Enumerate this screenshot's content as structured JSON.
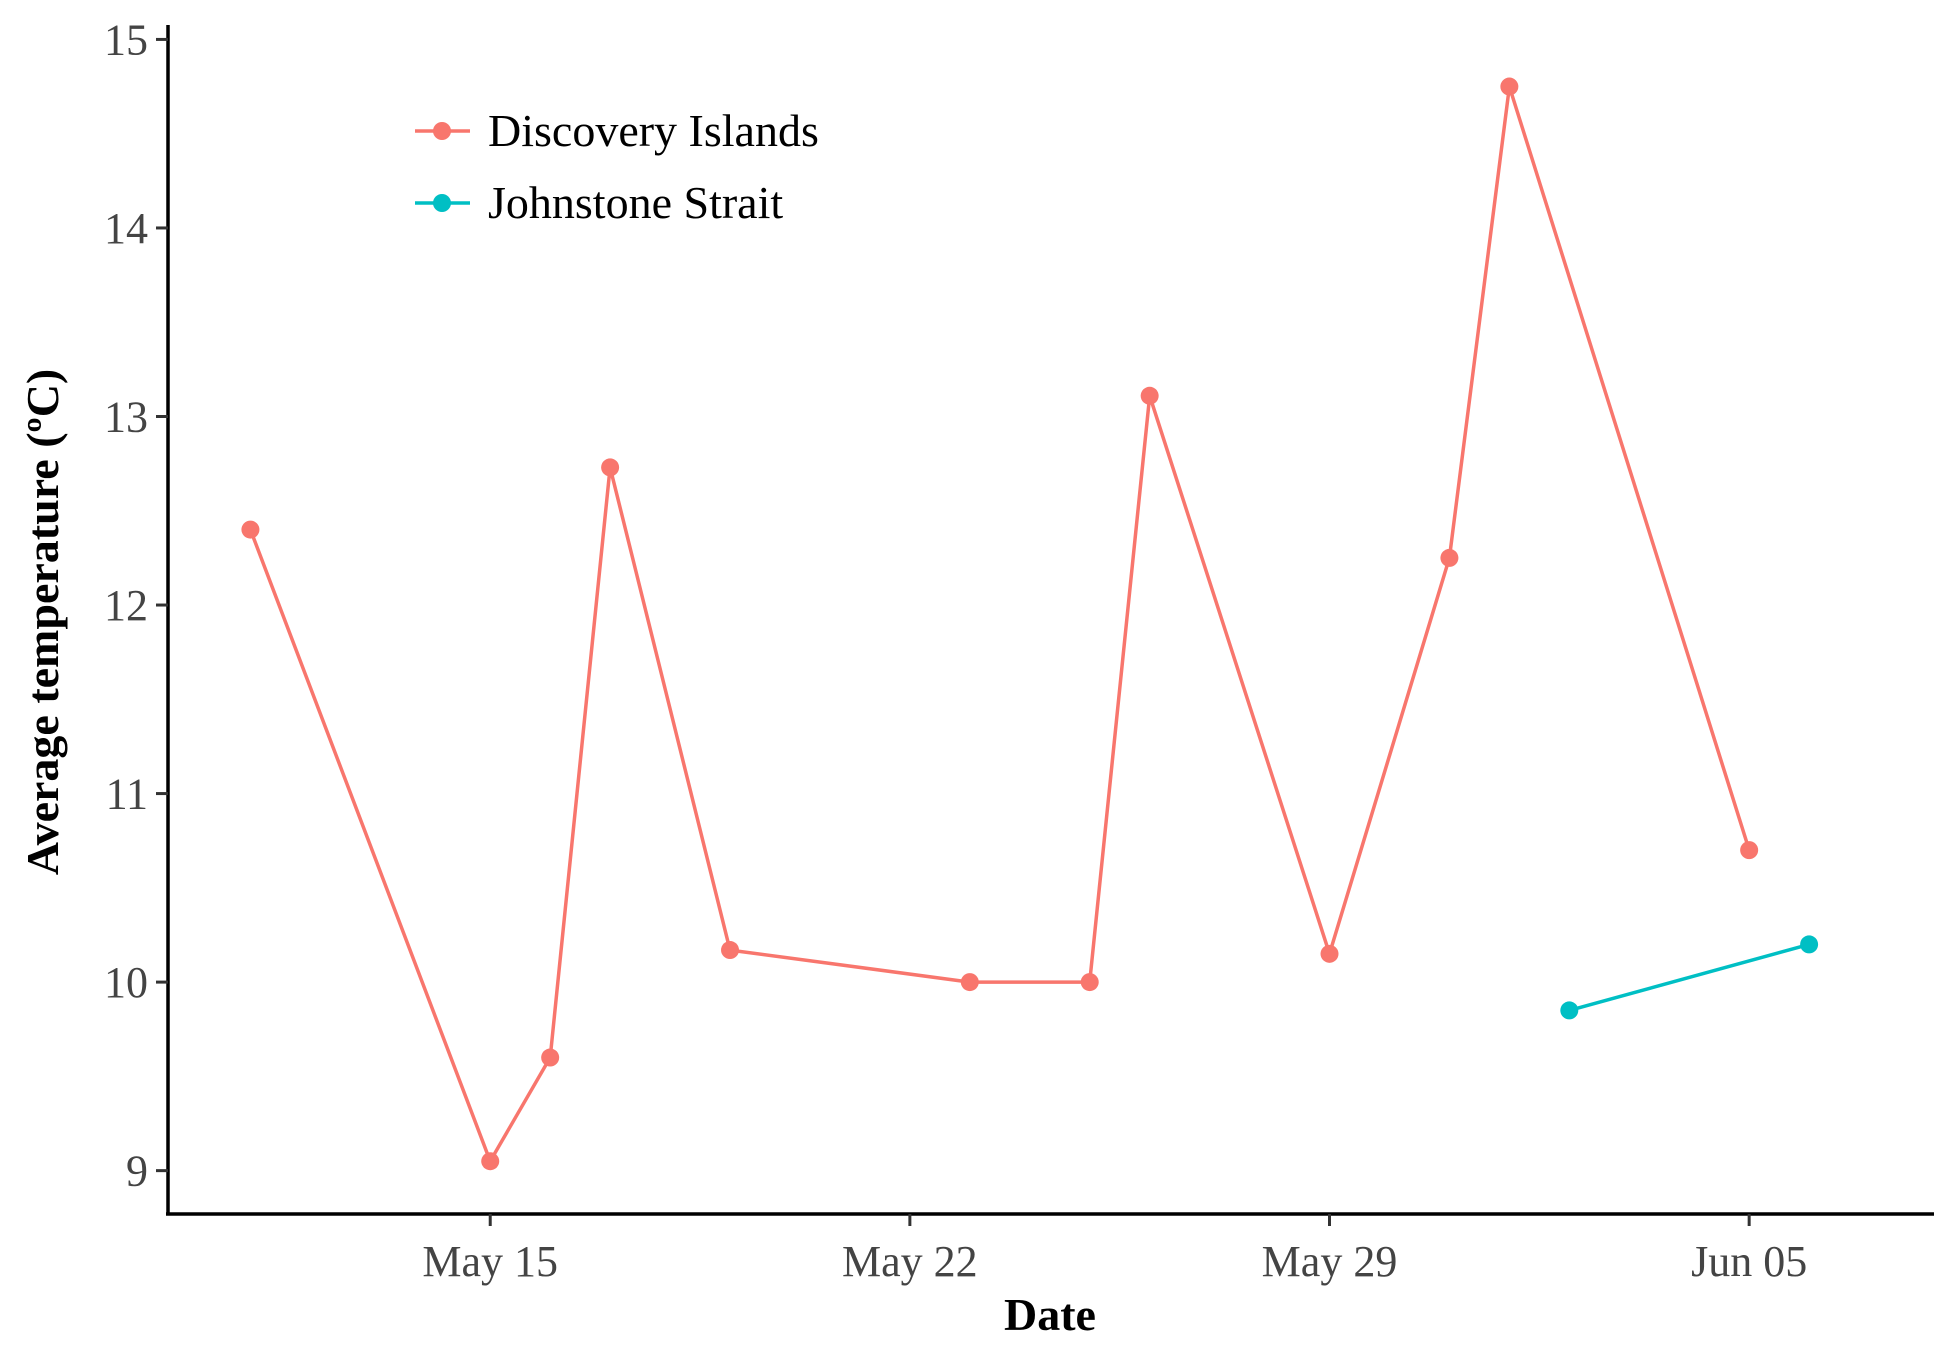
{
  "chart_data": {
    "type": "line",
    "title": "",
    "xlabel": "Date",
    "ylabel": "Average temperature (ºC)",
    "x_axis": {
      "type": "date",
      "range": [
        "2018-05-09T15:00",
        "2018-06-08T02:00"
      ],
      "ticks": [
        {
          "date": "2018-05-15",
          "label": "May 15"
        },
        {
          "date": "2018-05-22",
          "label": "May 22"
        },
        {
          "date": "2018-05-29",
          "label": "May 29"
        },
        {
          "date": "2018-06-05",
          "label": "Jun 05"
        }
      ]
    },
    "y_axis": {
      "range": [
        8.77,
        15.05
      ],
      "ticks": [
        9,
        10,
        11,
        12,
        13,
        14,
        15
      ]
    },
    "grid": false,
    "legend_position": "top-left",
    "series": [
      {
        "name": "Discovery Islands",
        "color": "#F8766D",
        "points": [
          {
            "x": "2018-05-11",
            "y": 12.4
          },
          {
            "x": "2018-05-15",
            "y": 9.05
          },
          {
            "x": "2018-05-16",
            "y": 9.6
          },
          {
            "x": "2018-05-17",
            "y": 12.73
          },
          {
            "x": "2018-05-19",
            "y": 10.17
          },
          {
            "x": "2018-05-23",
            "y": 10.0
          },
          {
            "x": "2018-05-25",
            "y": 10.0
          },
          {
            "x": "2018-05-26",
            "y": 13.11
          },
          {
            "x": "2018-05-29",
            "y": 10.15
          },
          {
            "x": "2018-05-31",
            "y": 12.25
          },
          {
            "x": "2018-06-01",
            "y": 14.75
          },
          {
            "x": "2018-06-05",
            "y": 10.7
          }
        ]
      },
      {
        "name": "Johnstone Strait",
        "color": "#00BFC4",
        "points": [
          {
            "x": "2018-06-02",
            "y": 9.85
          },
          {
            "x": "2018-06-06",
            "y": 10.2
          }
        ]
      }
    ]
  }
}
